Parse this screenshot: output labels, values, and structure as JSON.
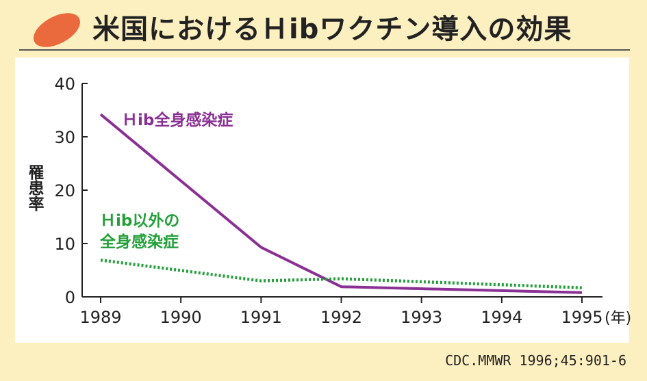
{
  "header": {
    "title": "米国におけるＨibワクチン導入の効果",
    "icon": "orange-oval-icon"
  },
  "source": "CDC.MMWR 1996;45:901-6",
  "colors": {
    "hib": "#8a2f93",
    "non_hib": "#23a03a",
    "background": "#fcefc0"
  },
  "chart_data": {
    "type": "line",
    "title": "米国におけるＨibワクチン導入の効果",
    "ylabel": "罹患率",
    "xunit": "(年)",
    "x": [
      1989,
      1990,
      1991,
      1992,
      1993,
      1994,
      1995
    ],
    "xticks": [
      "1989",
      "1990",
      "1991",
      "1992",
      "1993",
      "1994",
      "1995"
    ],
    "yticks": [
      "0",
      "10",
      "20",
      "30",
      "40"
    ],
    "ylim": [
      0,
      40
    ],
    "grid": false,
    "series": [
      {
        "name": "Ｈib全身感染症",
        "style": "solid",
        "points": [
          [
            1989,
            34.2
          ],
          [
            1991,
            9.3
          ],
          [
            1992,
            1.9
          ],
          [
            1995,
            0.8
          ]
        ]
      },
      {
        "name": "Ｈib以外の全身感染症",
        "name_lines": [
          "Ｈib以外の",
          "全身感染症"
        ],
        "style": "dotted",
        "points": [
          [
            1989,
            6.9
          ],
          [
            1991,
            3.0
          ],
          [
            1992,
            3.4
          ],
          [
            1995,
            1.7
          ]
        ]
      }
    ]
  }
}
